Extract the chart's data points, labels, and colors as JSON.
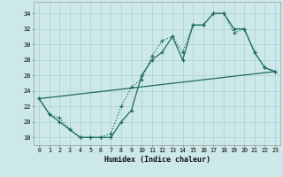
{
  "xlabel": "Humidex (Indice chaleur)",
  "bg_color": "#cde8e8",
  "grid_color": "#afd4d4",
  "line_color": "#1e6b5e",
  "xlim": [
    -0.5,
    23.5
  ],
  "ylim": [
    17,
    35.5
  ],
  "yticks": [
    18,
    20,
    22,
    24,
    26,
    28,
    30,
    32,
    34
  ],
  "xticks": [
    0,
    1,
    2,
    3,
    4,
    5,
    6,
    7,
    8,
    9,
    10,
    11,
    12,
    13,
    14,
    15,
    16,
    17,
    18,
    19,
    20,
    21,
    22,
    23
  ],
  "curve1_x": [
    0,
    1,
    2,
    3,
    4,
    5,
    6,
    7,
    8,
    9,
    10,
    11,
    12,
    13,
    14,
    15,
    16,
    17,
    18,
    19,
    20,
    21,
    22,
    23
  ],
  "curve1_y": [
    23.0,
    21.0,
    20.0,
    19.0,
    18.0,
    18.0,
    18.0,
    18.0,
    20.0,
    21.5,
    26.0,
    28.0,
    29.0,
    31.0,
    28.0,
    32.5,
    32.5,
    34.0,
    34.0,
    32.0,
    32.0,
    29.0,
    27.0,
    26.5
  ],
  "curve2_x": [
    0,
    1,
    2,
    3,
    4,
    5,
    6,
    7,
    8,
    9,
    10,
    11,
    12,
    13,
    14,
    15,
    16,
    17,
    18,
    19,
    20,
    21,
    22,
    23
  ],
  "curve2_y": [
    23.0,
    21.0,
    20.5,
    19.0,
    18.0,
    18.0,
    18.0,
    18.5,
    22.0,
    24.5,
    25.5,
    28.5,
    30.5,
    31.0,
    29.0,
    32.5,
    32.5,
    34.0,
    34.0,
    31.5,
    32.0,
    29.0,
    27.0,
    26.5
  ],
  "line3_x": [
    0,
    23
  ],
  "line3_y": [
    23.0,
    26.5
  ]
}
